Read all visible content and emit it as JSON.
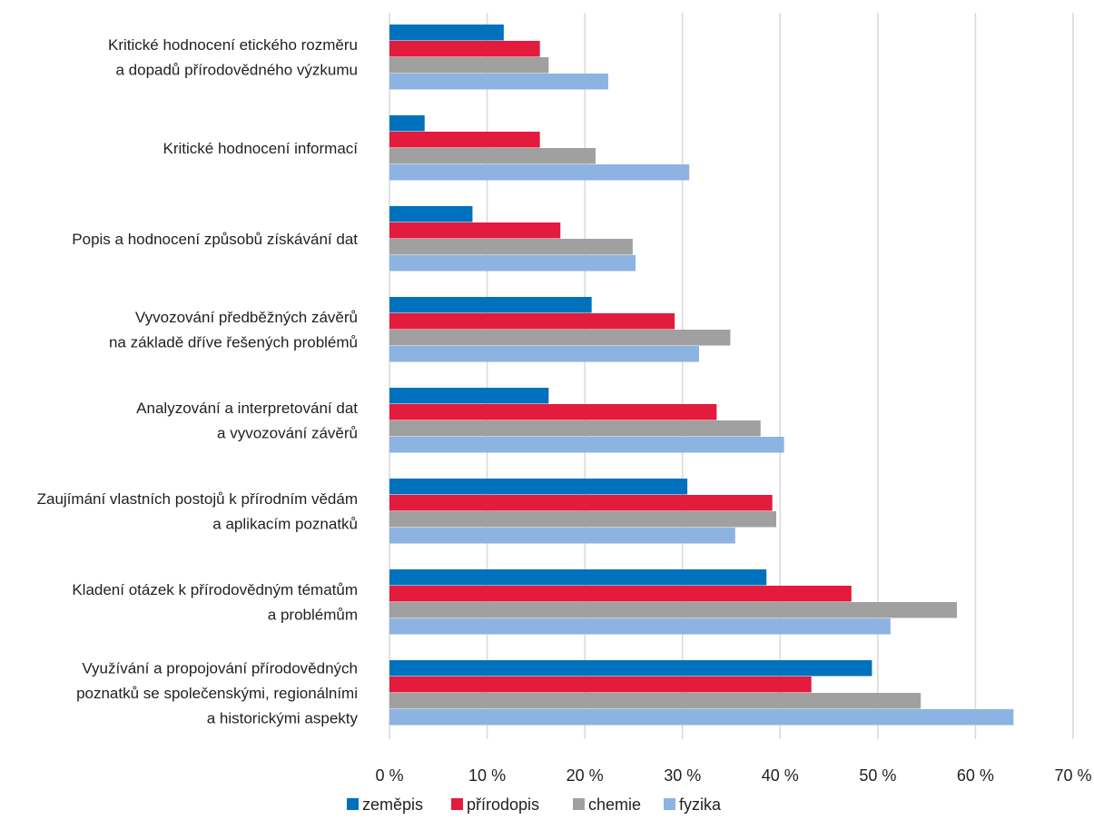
{
  "chart_data": {
    "type": "bar",
    "orientation": "horizontal",
    "categories": [
      [
        "Kritické hodnocení etického rozměru",
        "a dopadů přírodovědného výzkumu"
      ],
      [
        "Kritické hodnocení informací"
      ],
      [
        "Popis a hodnocení způsobů získávání dat"
      ],
      [
        "Vyvozování předběžných závěrů",
        "na základě dříve řešených problémů"
      ],
      [
        "Analyzování a interpretování dat",
        "a vyvozování závěrů"
      ],
      [
        "Zaujímání vlastních postojů k přírodním vědám",
        "a aplikacím poznatků"
      ],
      [
        "Kladení otázek k přírodovědným tématům",
        "a problémům"
      ],
      [
        "Využívání a propojování přírodovědných",
        "poznatků se společenskými, regionálními",
        "a historickými aspekty"
      ]
    ],
    "series": [
      {
        "name": "zeměpis",
        "color": "#0071bc",
        "values": [
          11.7,
          3.6,
          8.5,
          20.7,
          16.3,
          30.5,
          38.6,
          49.4
        ]
      },
      {
        "name": "přírodopis",
        "color": "#e31b3d",
        "values": [
          15.4,
          15.4,
          17.5,
          29.2,
          33.5,
          39.2,
          47.3,
          43.2
        ]
      },
      {
        "name": "chemie",
        "color": "#a0a0a0",
        "values": [
          16.3,
          21.1,
          24.9,
          34.9,
          38.0,
          39.6,
          58.1,
          54.4
        ]
      },
      {
        "name": "fyzika",
        "color": "#8db3e2",
        "values": [
          22.4,
          30.7,
          25.2,
          31.7,
          40.4,
          35.4,
          51.3,
          63.9
        ]
      }
    ],
    "xlim": [
      0,
      70
    ],
    "xticks": [
      0,
      10,
      20,
      30,
      40,
      50,
      60,
      70
    ],
    "tick_format": "{v} %",
    "gridlines": "vertical",
    "legend_position": "bottom",
    "title": "",
    "xlabel": "",
    "ylabel": ""
  }
}
